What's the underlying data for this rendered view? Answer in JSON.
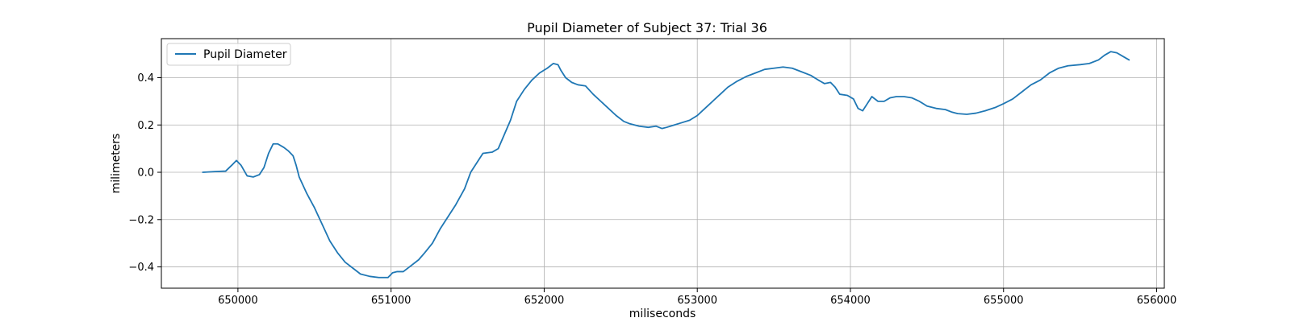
{
  "chart_data": {
    "type": "line",
    "title": "Pupil Diameter of Subject 37: Trial 36",
    "xlabel": "miliseconds",
    "ylabel": "milimeters",
    "xlim": [
      649500,
      656050
    ],
    "ylim": [
      -0.49,
      0.565
    ],
    "x_ticks": [
      650000,
      651000,
      652000,
      653000,
      654000,
      655000,
      656000
    ],
    "x_tick_labels": [
      "650000",
      "651000",
      "652000",
      "653000",
      "654000",
      "655000",
      "656000"
    ],
    "y_ticks": [
      -0.4,
      -0.2,
      0.0,
      0.2,
      0.4
    ],
    "y_tick_labels": [
      "−0.4",
      "−0.2",
      "0.0",
      "0.2",
      "0.4"
    ],
    "grid": true,
    "legend_position": "top-left",
    "series": [
      {
        "name": "Pupil Diameter",
        "color": "#1f77b4",
        "points": [
          [
            649770,
            0.0
          ],
          [
            649850,
            0.003
          ],
          [
            649920,
            0.005
          ],
          [
            649960,
            0.03
          ],
          [
            649990,
            0.05
          ],
          [
            650020,
            0.03
          ],
          [
            650060,
            -0.015
          ],
          [
            650100,
            -0.02
          ],
          [
            650140,
            -0.01
          ],
          [
            650170,
            0.02
          ],
          [
            650200,
            0.08
          ],
          [
            650230,
            0.12
          ],
          [
            650260,
            0.12
          ],
          [
            650300,
            0.105
          ],
          [
            650330,
            0.09
          ],
          [
            650360,
            0.07
          ],
          [
            650380,
            0.03
          ],
          [
            650400,
            -0.02
          ],
          [
            650450,
            -0.09
          ],
          [
            650500,
            -0.15
          ],
          [
            650550,
            -0.22
          ],
          [
            650600,
            -0.29
          ],
          [
            650650,
            -0.34
          ],
          [
            650700,
            -0.38
          ],
          [
            650750,
            -0.405
          ],
          [
            650800,
            -0.43
          ],
          [
            650860,
            -0.44
          ],
          [
            650920,
            -0.445
          ],
          [
            650980,
            -0.445
          ],
          [
            651010,
            -0.425
          ],
          [
            651040,
            -0.42
          ],
          [
            651080,
            -0.42
          ],
          [
            651120,
            -0.4
          ],
          [
            651180,
            -0.37
          ],
          [
            651220,
            -0.34
          ],
          [
            651270,
            -0.3
          ],
          [
            651320,
            -0.24
          ],
          [
            651380,
            -0.18
          ],
          [
            651420,
            -0.14
          ],
          [
            651480,
            -0.07
          ],
          [
            651520,
            0.0
          ],
          [
            651560,
            0.04
          ],
          [
            651600,
            0.08
          ],
          [
            651660,
            0.085
          ],
          [
            651700,
            0.1
          ],
          [
            651740,
            0.16
          ],
          [
            651780,
            0.22
          ],
          [
            651820,
            0.3
          ],
          [
            651870,
            0.35
          ],
          [
            651920,
            0.39
          ],
          [
            651970,
            0.42
          ],
          [
            652020,
            0.44
          ],
          [
            652060,
            0.46
          ],
          [
            652090,
            0.455
          ],
          [
            652110,
            0.43
          ],
          [
            652140,
            0.4
          ],
          [
            652180,
            0.38
          ],
          [
            652220,
            0.37
          ],
          [
            652270,
            0.365
          ],
          [
            652320,
            0.33
          ],
          [
            652370,
            0.3
          ],
          [
            652420,
            0.27
          ],
          [
            652470,
            0.24
          ],
          [
            652520,
            0.215
          ],
          [
            652560,
            0.205
          ],
          [
            652620,
            0.195
          ],
          [
            652680,
            0.19
          ],
          [
            652730,
            0.195
          ],
          [
            652770,
            0.185
          ],
          [
            652800,
            0.19
          ],
          [
            652850,
            0.2
          ],
          [
            652900,
            0.21
          ],
          [
            652950,
            0.22
          ],
          [
            653000,
            0.24
          ],
          [
            653050,
            0.27
          ],
          [
            653100,
            0.3
          ],
          [
            653150,
            0.33
          ],
          [
            653200,
            0.36
          ],
          [
            653260,
            0.385
          ],
          [
            653320,
            0.405
          ],
          [
            653380,
            0.42
          ],
          [
            653440,
            0.435
          ],
          [
            653500,
            0.44
          ],
          [
            653560,
            0.445
          ],
          [
            653620,
            0.44
          ],
          [
            653680,
            0.425
          ],
          [
            653740,
            0.41
          ],
          [
            653790,
            0.39
          ],
          [
            653830,
            0.375
          ],
          [
            653870,
            0.38
          ],
          [
            653900,
            0.36
          ],
          [
            653930,
            0.33
          ],
          [
            653980,
            0.325
          ],
          [
            654020,
            0.31
          ],
          [
            654050,
            0.27
          ],
          [
            654080,
            0.26
          ],
          [
            654110,
            0.29
          ],
          [
            654140,
            0.32
          ],
          [
            654180,
            0.3
          ],
          [
            654220,
            0.3
          ],
          [
            654260,
            0.315
          ],
          [
            654300,
            0.32
          ],
          [
            654350,
            0.32
          ],
          [
            654400,
            0.315
          ],
          [
            654450,
            0.3
          ],
          [
            654500,
            0.28
          ],
          [
            654560,
            0.27
          ],
          [
            654620,
            0.265
          ],
          [
            654660,
            0.255
          ],
          [
            654700,
            0.248
          ],
          [
            654760,
            0.245
          ],
          [
            654820,
            0.25
          ],
          [
            654880,
            0.26
          ],
          [
            654950,
            0.275
          ],
          [
            655000,
            0.29
          ],
          [
            655060,
            0.31
          ],
          [
            655120,
            0.34
          ],
          [
            655180,
            0.37
          ],
          [
            655240,
            0.39
          ],
          [
            655300,
            0.42
          ],
          [
            655360,
            0.44
          ],
          [
            655420,
            0.45
          ],
          [
            655500,
            0.455
          ],
          [
            655560,
            0.46
          ],
          [
            655620,
            0.475
          ],
          [
            655660,
            0.495
          ],
          [
            655700,
            0.51
          ],
          [
            655740,
            0.505
          ],
          [
            655780,
            0.49
          ],
          [
            655820,
            0.475
          ]
        ]
      }
    ]
  }
}
